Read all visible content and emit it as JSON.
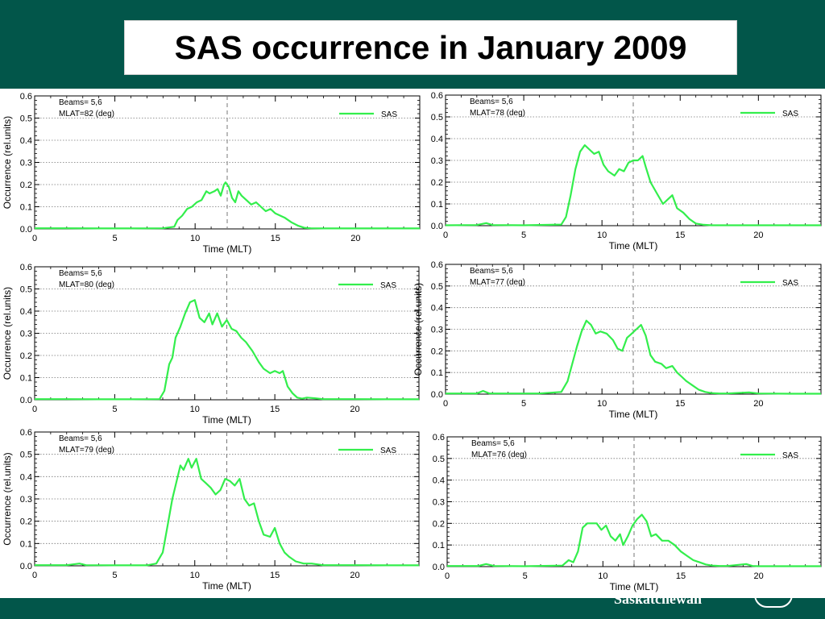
{
  "page": {
    "title": "SAS occurrence in January 2009",
    "footer_text": "Saskatchewan",
    "seal_text": "circle",
    "colors": {
      "background": "#02564a",
      "series": "#33ee4c",
      "panel_bg": "#ffffff"
    }
  },
  "chart_data": [
    {
      "type": "line",
      "beams_label": "Beams= 5,6",
      "mlat_label": "MLAT=82 (deg)",
      "xlabel": "Time (MLT)",
      "ylabel": "Occurrence (rel.units)",
      "xlim": [
        0,
        24
      ],
      "ylim": [
        0,
        0.6
      ],
      "xticks": [
        0,
        5,
        10,
        15,
        20
      ],
      "yticks": [
        0.0,
        0.1,
        0.2,
        0.3,
        0.4,
        0.5,
        0.6
      ],
      "vline_x": 12,
      "legend": "top-right",
      "series": [
        {
          "name": "SAS",
          "x": [
            0,
            2,
            4,
            6,
            8,
            8.7,
            8.9,
            9.2,
            9.5,
            9.8,
            10.1,
            10.4,
            10.7,
            10.9,
            11.2,
            11.4,
            11.6,
            11.8,
            11.9,
            12.1,
            12.3,
            12.5,
            12.7,
            12.9,
            13.2,
            13.5,
            13.8,
            14.1,
            14.4,
            14.7,
            15,
            15.3,
            15.6,
            16,
            16.4,
            16.8,
            17.2,
            18,
            20,
            22,
            24
          ],
          "y": [
            0.003,
            0.003,
            0.002,
            0.002,
            0.003,
            0.01,
            0.04,
            0.06,
            0.09,
            0.1,
            0.12,
            0.13,
            0.17,
            0.16,
            0.17,
            0.18,
            0.15,
            0.2,
            0.21,
            0.19,
            0.14,
            0.12,
            0.17,
            0.15,
            0.13,
            0.11,
            0.12,
            0.1,
            0.08,
            0.09,
            0.07,
            0.06,
            0.05,
            0.03,
            0.015,
            0.005,
            0.003,
            0.002,
            0.002,
            0.002,
            0.002
          ]
        }
      ]
    },
    {
      "type": "line",
      "beams_label": "Beams= 5,6",
      "mlat_label": "MLAT=78 (deg)",
      "xlabel": "Time (MLT)",
      "ylabel": "",
      "xlim": [
        0,
        24
      ],
      "ylim": [
        0,
        0.6
      ],
      "xticks": [
        0,
        5,
        10,
        15,
        20
      ],
      "yticks": [
        0.0,
        0.1,
        0.2,
        0.3,
        0.4,
        0.5,
        0.6
      ],
      "vline_x": 12,
      "legend": "top-right",
      "series": [
        {
          "name": "SAS",
          "x": [
            0,
            2,
            2.6,
            3,
            5,
            7.4,
            7.7,
            8,
            8.3,
            8.6,
            8.9,
            9.2,
            9.5,
            9.8,
            10.1,
            10.4,
            10.8,
            11.1,
            11.4,
            11.7,
            12,
            12.3,
            12.6,
            12.8,
            13.1,
            13.5,
            13.9,
            14.2,
            14.5,
            14.8,
            15.2,
            15.6,
            16,
            16.5,
            17,
            18,
            20,
            22,
            24
          ],
          "y": [
            0.002,
            0.003,
            0.012,
            0.003,
            0.002,
            0.005,
            0.04,
            0.14,
            0.26,
            0.34,
            0.37,
            0.35,
            0.33,
            0.34,
            0.28,
            0.25,
            0.23,
            0.26,
            0.25,
            0.29,
            0.3,
            0.3,
            0.32,
            0.27,
            0.2,
            0.15,
            0.1,
            0.12,
            0.14,
            0.08,
            0.06,
            0.03,
            0.01,
            0.004,
            0.002,
            0.002,
            0.002,
            0.002,
            0.002
          ]
        }
      ]
    },
    {
      "type": "line",
      "beams_label": "Beams= 5,6",
      "mlat_label": "MLAT=80 (deg)",
      "xlabel": "Time (MLT)",
      "ylabel": "Occurrence (rel.units)",
      "xlim": [
        0,
        24
      ],
      "ylim": [
        0,
        0.6
      ],
      "xticks": [
        0,
        5,
        10,
        15,
        20
      ],
      "yticks": [
        0.0,
        0.1,
        0.2,
        0.3,
        0.4,
        0.5,
        0.6
      ],
      "vline_x": 12,
      "legend": "top-right",
      "series": [
        {
          "name": "SAS",
          "x": [
            0,
            2,
            4,
            6,
            7.8,
            8.1,
            8.4,
            8.6,
            8.8,
            9.1,
            9.4,
            9.7,
            10,
            10.3,
            10.6,
            10.9,
            11.1,
            11.4,
            11.7,
            12,
            12.3,
            12.6,
            12.9,
            13.2,
            13.6,
            14,
            14.3,
            14.7,
            15,
            15.3,
            15.5,
            15.8,
            16.1,
            16.4,
            16.7,
            17,
            17.5,
            18,
            20,
            22,
            24
          ],
          "y": [
            0.003,
            0.003,
            0.002,
            0.002,
            0.003,
            0.04,
            0.16,
            0.19,
            0.28,
            0.33,
            0.39,
            0.44,
            0.45,
            0.37,
            0.35,
            0.39,
            0.34,
            0.39,
            0.33,
            0.36,
            0.32,
            0.31,
            0.28,
            0.26,
            0.22,
            0.17,
            0.14,
            0.12,
            0.13,
            0.12,
            0.13,
            0.06,
            0.03,
            0.01,
            0.005,
            0.01,
            0.007,
            0.003,
            0.003,
            0.002,
            0.002
          ]
        }
      ]
    },
    {
      "type": "line",
      "beams_label": "Beams= 5,6",
      "mlat_label": "MLAT=77 (deg)",
      "xlabel": "Time (MLT)",
      "ylabel": "Occurrence (rel.units)",
      "xlim": [
        0,
        24
      ],
      "ylim": [
        0,
        0.6
      ],
      "xticks": [
        0,
        5,
        10,
        15,
        20
      ],
      "yticks": [
        0.0,
        0.1,
        0.2,
        0.3,
        0.4,
        0.5,
        0.6
      ],
      "vline_x": 12,
      "legend": "top-right",
      "series": [
        {
          "name": "SAS",
          "x": [
            0,
            2,
            2.4,
            2.8,
            4,
            6,
            7.4,
            7.8,
            8.1,
            8.4,
            8.7,
            9,
            9.3,
            9.6,
            9.9,
            10.3,
            10.7,
            11,
            11.3,
            11.6,
            11.9,
            12.2,
            12.5,
            12.8,
            13.1,
            13.4,
            13.8,
            14.1,
            14.5,
            14.8,
            15.1,
            15.4,
            15.8,
            16.2,
            16.6,
            17,
            17.5,
            18,
            19.4,
            20,
            22,
            24
          ],
          "y": [
            0.003,
            0.003,
            0.015,
            0.003,
            0.003,
            0.003,
            0.01,
            0.06,
            0.14,
            0.22,
            0.29,
            0.34,
            0.32,
            0.28,
            0.29,
            0.28,
            0.25,
            0.21,
            0.2,
            0.26,
            0.28,
            0.3,
            0.32,
            0.27,
            0.18,
            0.15,
            0.14,
            0.12,
            0.13,
            0.1,
            0.08,
            0.06,
            0.04,
            0.02,
            0.01,
            0.005,
            0.003,
            0.003,
            0.008,
            0.003,
            0.002,
            0.002
          ]
        }
      ]
    },
    {
      "type": "line",
      "beams_label": "Beams= 5,6",
      "mlat_label": "MLAT=79 (deg)",
      "xlabel": "Time (MLT)",
      "ylabel": "Occurrence (rel.units)",
      "xlim": [
        0,
        24
      ],
      "ylim": [
        0,
        0.6
      ],
      "xticks": [
        0,
        5,
        10,
        15,
        20
      ],
      "yticks": [
        0.0,
        0.1,
        0.2,
        0.3,
        0.4,
        0.5,
        0.6
      ],
      "vline_x": 12,
      "legend": "top-right",
      "series": [
        {
          "name": "SAS",
          "x": [
            0,
            2,
            2.8,
            3.2,
            5,
            7,
            7.6,
            8,
            8.3,
            8.6,
            8.9,
            9.1,
            9.3,
            9.6,
            9.8,
            10.1,
            10.4,
            10.7,
            11,
            11.3,
            11.6,
            11.9,
            12.2,
            12.5,
            12.8,
            13.1,
            13.4,
            13.7,
            14,
            14.3,
            14.7,
            15,
            15.3,
            15.6,
            15.9,
            16.3,
            16.8,
            17.3,
            18,
            20,
            22,
            24
          ],
          "y": [
            0.003,
            0.003,
            0.01,
            0.003,
            0.002,
            0.002,
            0.01,
            0.06,
            0.18,
            0.3,
            0.39,
            0.45,
            0.43,
            0.48,
            0.44,
            0.48,
            0.39,
            0.37,
            0.35,
            0.32,
            0.34,
            0.39,
            0.38,
            0.36,
            0.39,
            0.3,
            0.27,
            0.28,
            0.2,
            0.14,
            0.13,
            0.17,
            0.1,
            0.06,
            0.04,
            0.02,
            0.01,
            0.01,
            0.003,
            0.003,
            0.002,
            0.002
          ]
        }
      ]
    },
    {
      "type": "line",
      "beams_label": "Beams= 5,6",
      "mlat_label": "MLAT=76 (deg)",
      "xlabel": "Time (MLT)",
      "ylabel": "",
      "xlim": [
        0,
        24
      ],
      "ylim": [
        0,
        0.6
      ],
      "xticks": [
        0,
        5,
        10,
        15,
        20
      ],
      "yticks": [
        0.0,
        0.1,
        0.2,
        0.3,
        0.4,
        0.5,
        0.6
      ],
      "vline_x": 12,
      "legend": "top-right",
      "series": [
        {
          "name": "SAS",
          "x": [
            0,
            2,
            2.5,
            3,
            5,
            7.4,
            7.8,
            8.1,
            8.4,
            8.7,
            9,
            9.3,
            9.6,
            9.9,
            10.2,
            10.5,
            10.8,
            11.1,
            11.3,
            11.6,
            11.9,
            12.2,
            12.5,
            12.8,
            13.1,
            13.4,
            13.8,
            14.2,
            14.6,
            15,
            15.4,
            15.8,
            16.2,
            16.6,
            17,
            17.5,
            18,
            19.2,
            19.6,
            20,
            22,
            24
          ],
          "y": [
            0.003,
            0.003,
            0.012,
            0.003,
            0.002,
            0.005,
            0.03,
            0.02,
            0.07,
            0.18,
            0.2,
            0.2,
            0.2,
            0.17,
            0.19,
            0.14,
            0.12,
            0.15,
            0.1,
            0.14,
            0.19,
            0.22,
            0.24,
            0.21,
            0.14,
            0.15,
            0.12,
            0.12,
            0.1,
            0.07,
            0.05,
            0.03,
            0.02,
            0.01,
            0.005,
            0.003,
            0.003,
            0.012,
            0.003,
            0.002,
            0.002,
            0.002
          ]
        }
      ]
    }
  ]
}
